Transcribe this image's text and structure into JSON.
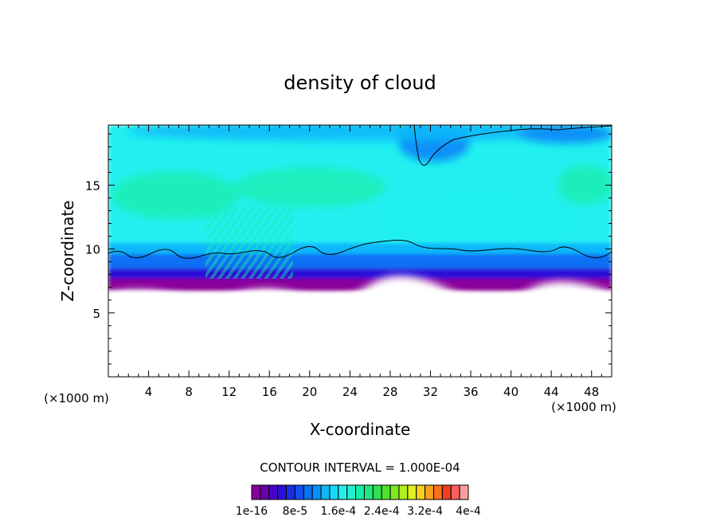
{
  "chart_data": {
    "type": "heatmap",
    "title": "density of cloud",
    "xlabel": "X-coordinate",
    "ylabel": "Z-coordinate",
    "x_unit": "(×1000 m)",
    "z_unit": "(×1000 m)",
    "xlim": [
      0,
      50
    ],
    "ylim": [
      0,
      19.7
    ],
    "x_ticks": [
      4,
      8,
      12,
      16,
      20,
      24,
      28,
      32,
      36,
      40,
      44,
      48
    ],
    "y_ticks": [
      5,
      10,
      15
    ],
    "contour_interval_label": "CONTOUR INTERVAL = 1.000E-04",
    "colorbar": {
      "min": 1e-16,
      "max": 0.0004,
      "levels": 25,
      "tick_labels": [
        "1e-16",
        "8e-5",
        "1.6e-4",
        "2.4e-4",
        "3.2e-4",
        "4e-4"
      ],
      "colors": [
        "#8a009a",
        "#6a00b0",
        "#4b00c8",
        "#2a10d8",
        "#1a2ee8",
        "#1050f0",
        "#0a70f5",
        "#0a90f8",
        "#10b8fa",
        "#18d8fa",
        "#20f0f0",
        "#20f0d0",
        "#18eeaa",
        "#20e880",
        "#30e050",
        "#50e030",
        "#80e820",
        "#b0f020",
        "#e0f020",
        "#f8d020",
        "#f8a020",
        "#f87020",
        "#f04020",
        "#f86060",
        "#f8a0a0"
      ]
    },
    "cloud_region": {
      "cloud_base_km": 7.3,
      "cloud_top_km": 19.7,
      "contour_line_1e-4_height_km": 9.7
    }
  }
}
